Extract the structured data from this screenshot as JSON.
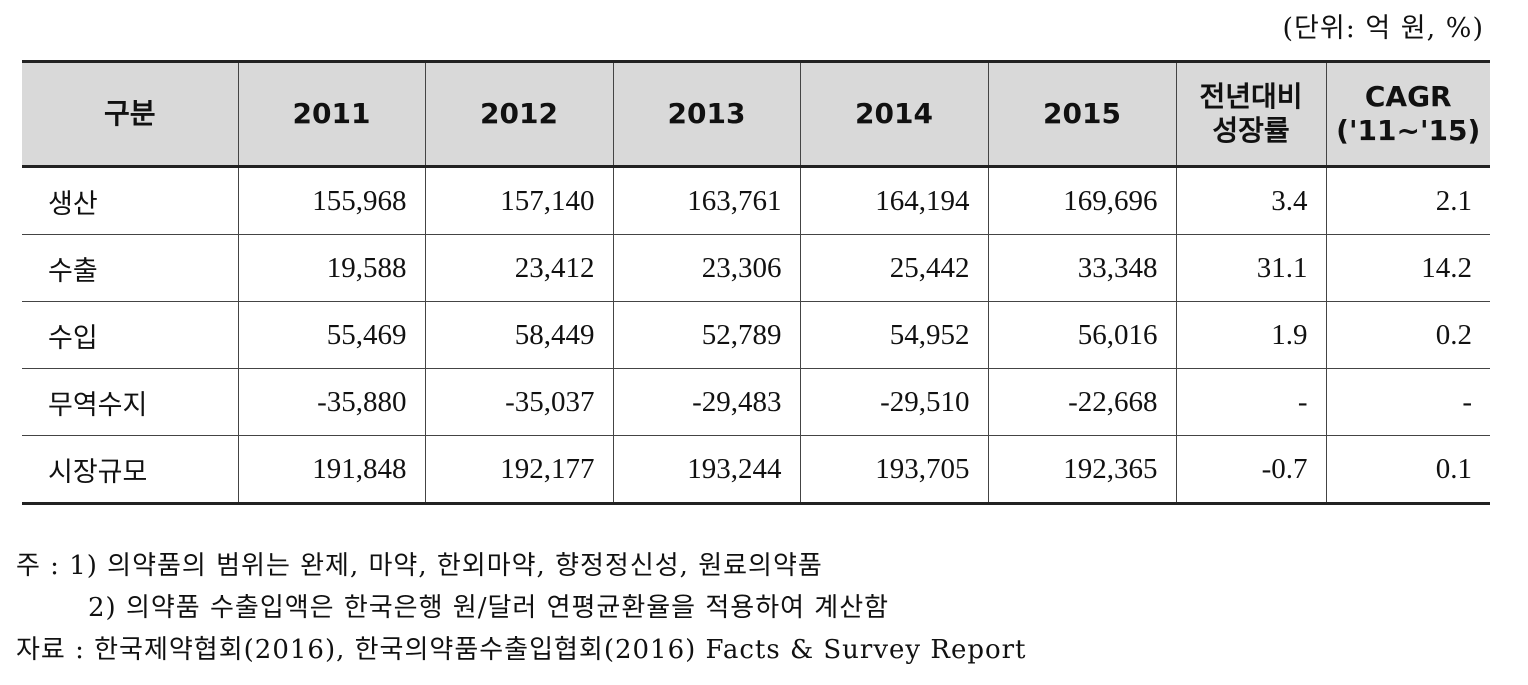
{
  "unit_label": "(단위: 억 원, %)",
  "table": {
    "headers": {
      "category": "구분",
      "y2011": "2011",
      "y2012": "2012",
      "y2013": "2013",
      "y2014": "2014",
      "y2015": "2015",
      "yoy_line1": "전년대비",
      "yoy_line2": "성장률",
      "cagr_line1": "CAGR",
      "cagr_line2": "('11~'15)"
    },
    "rows": [
      {
        "label": "생산",
        "v2011": "155,968",
        "v2012": "157,140",
        "v2013": "163,761",
        "v2014": "164,194",
        "v2015": "169,696",
        "yoy": "3.4",
        "cagr": "2.1"
      },
      {
        "label": "수출",
        "v2011": "19,588",
        "v2012": "23,412",
        "v2013": "23,306",
        "v2014": "25,442",
        "v2015": "33,348",
        "yoy": "31.1",
        "cagr": "14.2"
      },
      {
        "label": "수입",
        "v2011": "55,469",
        "v2012": "58,449",
        "v2013": "52,789",
        "v2014": "54,952",
        "v2015": "56,016",
        "yoy": "1.9",
        "cagr": "0.2"
      },
      {
        "label": "무역수지",
        "v2011": "-35,880",
        "v2012": "-35,037",
        "v2013": "-29,483",
        "v2014": "-29,510",
        "v2015": "-22,668",
        "yoy": "-",
        "cagr": "-"
      },
      {
        "label": "시장규모",
        "v2011": "191,848",
        "v2012": "192,177",
        "v2013": "193,244",
        "v2014": "193,705",
        "v2015": "192,365",
        "yoy": "-0.7",
        "cagr": "0.1"
      }
    ]
  },
  "notes": {
    "note1": "주 : 1) 의약품의 범위는 완제, 마약, 한외마약, 향정정신성, 원료의약품",
    "note2": "2) 의약품 수출입액은 한국은행 원/달러 연평균환율을 적용하여 계산함",
    "source": "자료 : 한국제약협회(2016), 한국의약품수출입협회(2016) Facts & Survey Report"
  }
}
